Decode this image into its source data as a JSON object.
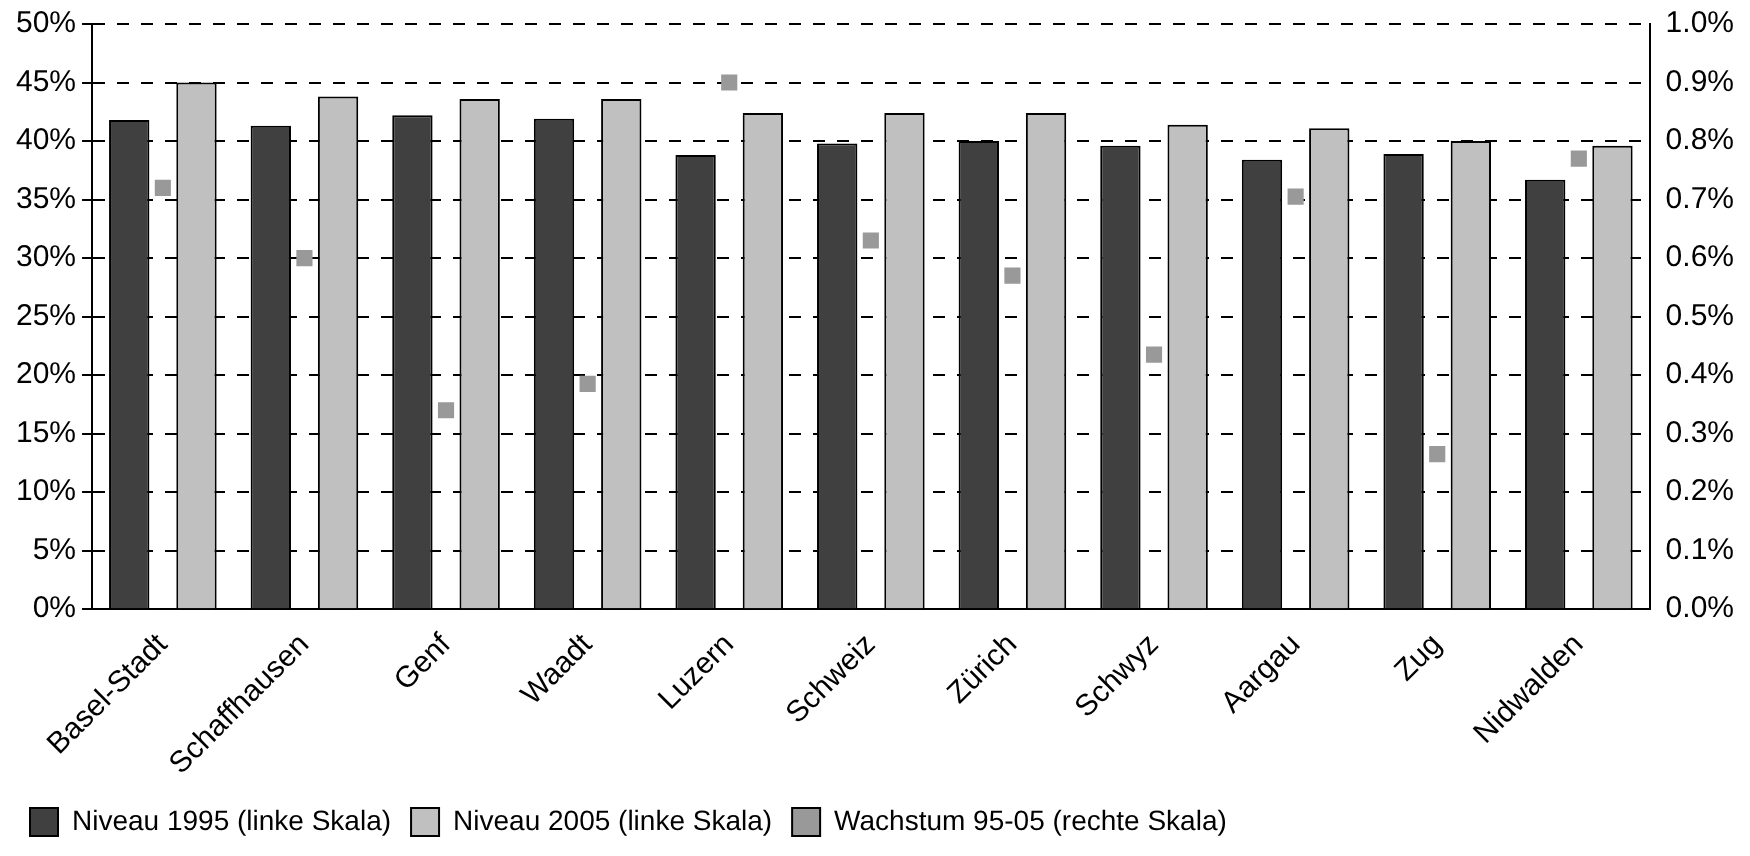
{
  "chart_data": {
    "type": "bar",
    "categories": [
      "Basel-Stadt",
      "Schaffhausen",
      "Genf",
      "Waadt",
      "Luzern",
      "Schweiz",
      "Zürich",
      "Schwyz",
      "Aargau",
      "Zug",
      "Nidwalden"
    ],
    "series": [
      {
        "name": "Niveau 1995 (linke Skala)",
        "color": "#404040",
        "values": [
          41.8,
          41.3,
          42.2,
          41.9,
          38.8,
          39.8,
          40.0,
          39.6,
          38.4,
          38.9,
          36.7
        ]
      },
      {
        "name": "Niveau 2005 (linke Skala)",
        "color": "#c0c0c0",
        "values": [
          45.0,
          43.8,
          43.6,
          43.6,
          42.4,
          42.4,
          42.4,
          41.4,
          41.1,
          40.0,
          39.6
        ]
      },
      {
        "name": "Wachstum 95-05 (rechte Skala)",
        "type": "scatter",
        "axis": "y2",
        "color": "#999999",
        "values": [
          0.72,
          0.6,
          0.34,
          0.385,
          0.9,
          0.63,
          0.57,
          0.435,
          0.705,
          0.265,
          0.77
        ]
      }
    ],
    "ylim": [
      0,
      50
    ],
    "yticks": [
      {
        "value": 0,
        "label": "0%"
      },
      {
        "value": 5,
        "label": "5%"
      },
      {
        "value": 10,
        "label": "10%"
      },
      {
        "value": 15,
        "label": "15%"
      },
      {
        "value": 20,
        "label": "20%"
      },
      {
        "value": 25,
        "label": "25%"
      },
      {
        "value": 30,
        "label": "30%"
      },
      {
        "value": 35,
        "label": "35%"
      },
      {
        "value": 40,
        "label": "40%"
      },
      {
        "value": 45,
        "label": "45%"
      },
      {
        "value": 50,
        "label": "50%"
      }
    ],
    "y2lim": [
      0,
      1
    ],
    "y2ticks": [
      {
        "value": 0,
        "label": "0.0%"
      },
      {
        "value": 0.1,
        "label": "0.1%"
      },
      {
        "value": 0.2,
        "label": "0.2%"
      },
      {
        "value": 0.3,
        "label": "0.3%"
      },
      {
        "value": 0.4,
        "label": "0.4%"
      },
      {
        "value": 0.5,
        "label": "0.5%"
      },
      {
        "value": 0.6,
        "label": "0.6%"
      },
      {
        "value": 0.7,
        "label": "0.7%"
      },
      {
        "value": 0.8,
        "label": "0.8%"
      },
      {
        "value": 0.9,
        "label": "0.9%"
      },
      {
        "value": 1.0,
        "label": "1.0%"
      }
    ],
    "grid": "y",
    "legend": "bottom left"
  }
}
